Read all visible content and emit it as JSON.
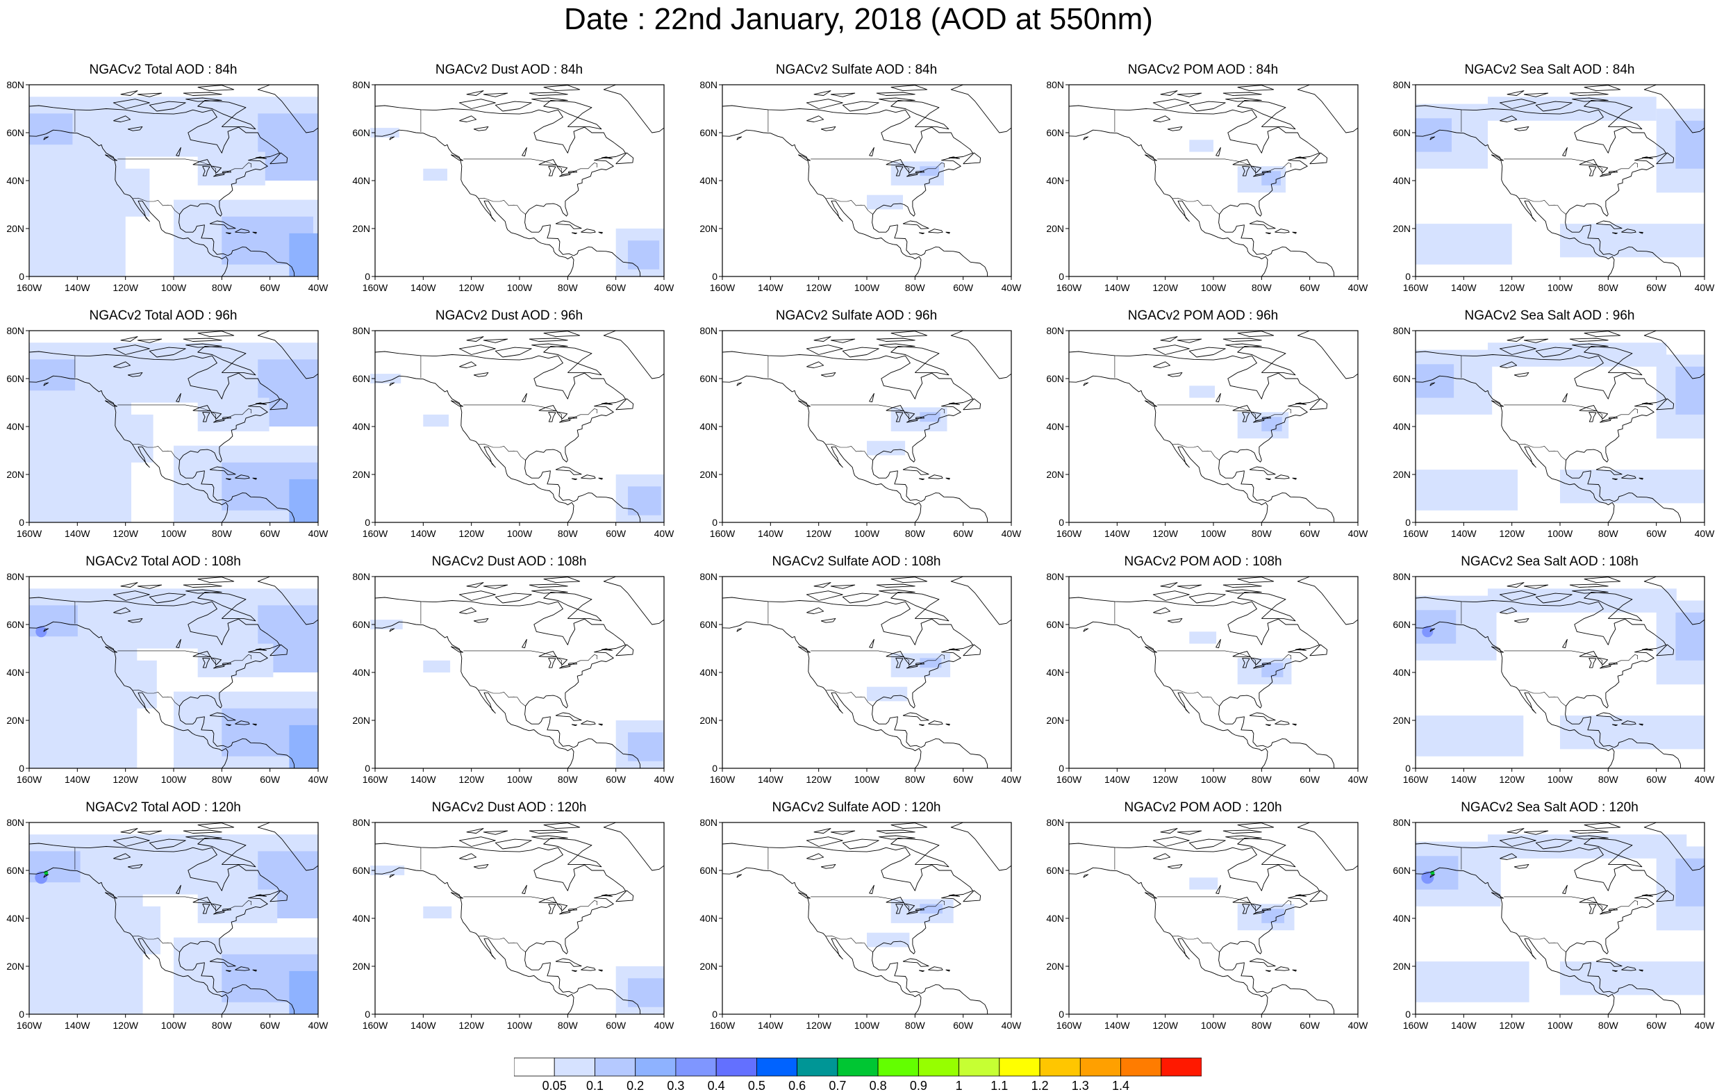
{
  "title": "Date : 22nd January, 2018 (AOD at 550nm)",
  "rows": [
    {
      "forecast_hour": "84h",
      "titles": [
        "NGACv2 Total AOD : 84h",
        "NGACv2 Dust AOD : 84h",
        "NGACv2 Sulfate AOD : 84h",
        "NGACv2 POM AOD : 84h",
        "NGACv2 Sea Salt AOD : 84h"
      ]
    },
    {
      "forecast_hour": "96h",
      "titles": [
        "NGACv2 Total AOD : 96h",
        "NGACv2 Dust AOD : 96h",
        "NGACv2 Sulfate AOD : 96h",
        "NGACv2 POM AOD : 96h",
        "NGACv2 Sea Salt AOD : 96h"
      ]
    },
    {
      "forecast_hour": "108h",
      "titles": [
        "NGACv2 Total AOD : 108h",
        "NGACv2 Dust AOD : 108h",
        "NGACv2 Sulfate AOD : 108h",
        "NGACv2 POM AOD : 108h",
        "NGACv2 Sea Salt  AOD : 108h"
      ]
    },
    {
      "forecast_hour": "120h",
      "titles": [
        "NGACv2 Total AOD : 120h",
        "NGACv2 Dust AOD : 120h",
        "NGACv2 Sulfate AOD : 120h",
        "NGACv2 POM AOD : 120h",
        "NGACv2 Sea Salt  AOD : 120h"
      ]
    }
  ],
  "lat_ticks": [
    "0",
    "20N",
    "40N",
    "60N",
    "80N"
  ],
  "lon_ticks": [
    "160W",
    "140W",
    "120W",
    "100W",
    "80W",
    "60W",
    "40W"
  ],
  "colorbar": {
    "labels": [
      "0.05",
      "0.1",
      "0.2",
      "0.3",
      "0.4",
      "0.5",
      "0.6",
      "0.7",
      "0.8",
      "0.9",
      "1",
      "1.1",
      "1.2",
      "1.3",
      "1.4"
    ],
    "colors": [
      "#ffffff",
      "#d6e2ff",
      "#b5c9ff",
      "#8eb2ff",
      "#7f96ff",
      "#6370ff",
      "#0063ff",
      "#009696",
      "#00c633",
      "#63ff00",
      "#96ff00",
      "#c6ff33",
      "#ffff00",
      "#ffc600",
      "#ffa000",
      "#ff7c00",
      "#ff1900"
    ]
  },
  "map_colors": {
    "light": "#d6e2ff",
    "medium": "#b5c9ff",
    "strong": "#8eb2ff",
    "intense": "#7f96ff",
    "green": "#00c633"
  }
}
